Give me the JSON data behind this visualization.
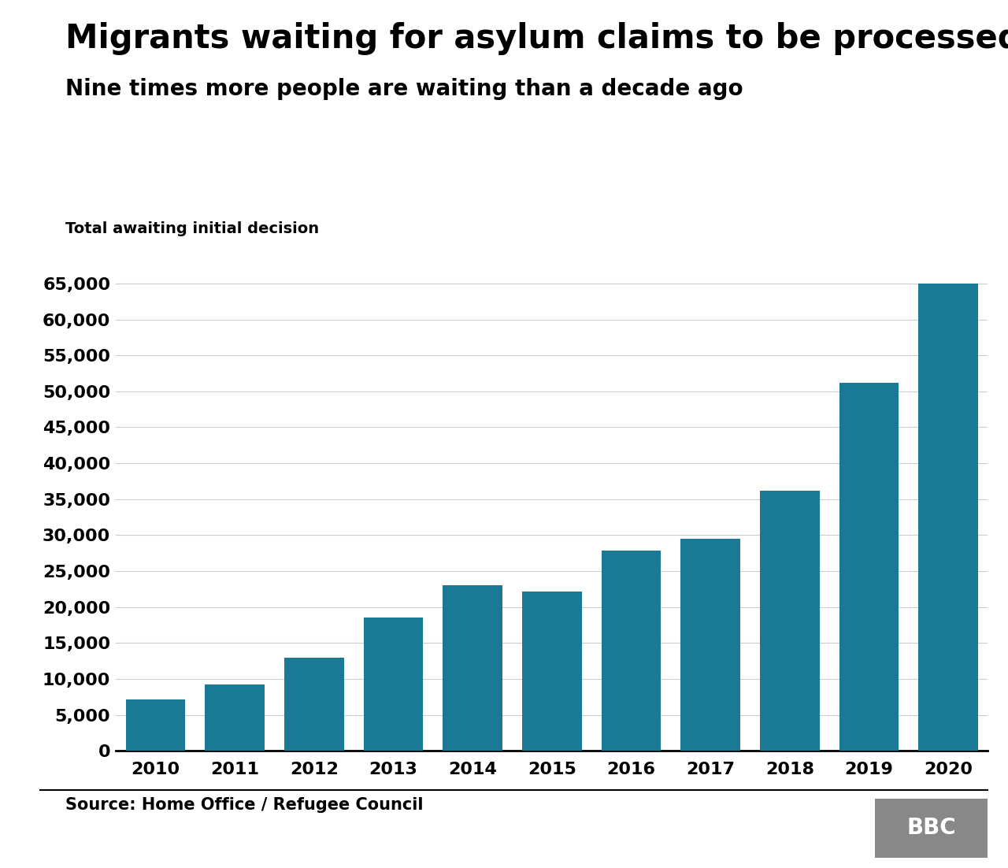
{
  "title": "Migrants waiting for asylum claims to be processed",
  "subtitle": "Nine times more people are waiting than a decade ago",
  "ylabel_annotation": "Total awaiting initial decision",
  "source": "Source: Home Office / Refugee Council",
  "years": [
    2010,
    2011,
    2012,
    2013,
    2014,
    2015,
    2016,
    2017,
    2018,
    2019,
    2020
  ],
  "values": [
    7200,
    9200,
    13000,
    18500,
    23000,
    22200,
    27900,
    29500,
    36200,
    51200,
    65000
  ],
  "bar_color": "#1a7a96",
  "background_color": "#ffffff",
  "ylim": [
    0,
    67000
  ],
  "yticks": [
    0,
    5000,
    10000,
    15000,
    20000,
    25000,
    30000,
    35000,
    40000,
    45000,
    50000,
    55000,
    60000,
    65000
  ],
  "title_fontsize": 30,
  "subtitle_fontsize": 20,
  "tick_fontsize": 16,
  "annotation_fontsize": 14,
  "source_fontsize": 15,
  "bbc_color": "#888888"
}
